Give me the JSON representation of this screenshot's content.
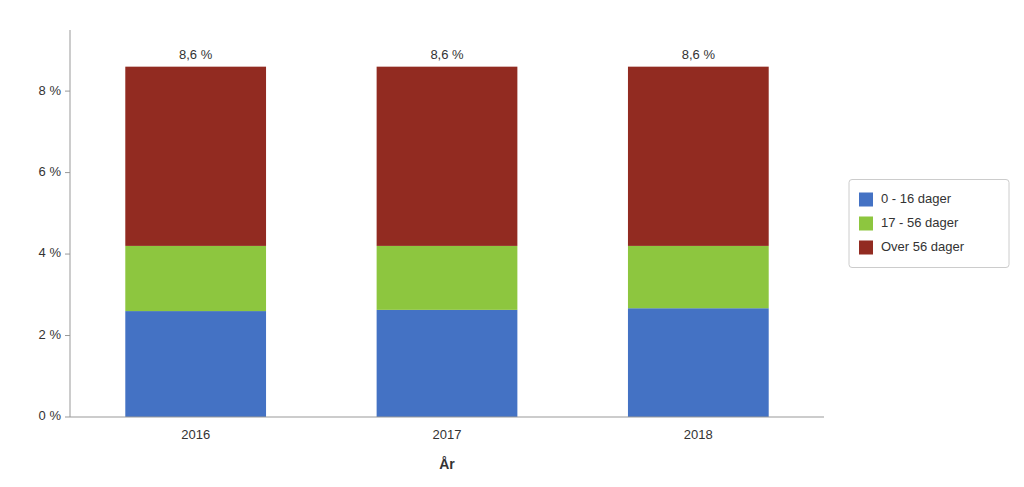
{
  "chart_data": {
    "type": "bar",
    "stacked": true,
    "categories": [
      "2016",
      "2017",
      "2018"
    ],
    "series": [
      {
        "name": "0 - 16 dager",
        "color": "#4472C4",
        "values": [
          2.6,
          2.63,
          2.67
        ]
      },
      {
        "name": "17 - 56 dager",
        "color": "#8DC63F",
        "values": [
          1.6,
          1.57,
          1.53
        ]
      },
      {
        "name": "Over 56 dager",
        "color": "#922B21",
        "values": [
          4.4,
          4.4,
          4.4
        ]
      }
    ],
    "totals": [
      8.6,
      8.6,
      8.6
    ],
    "total_labels": [
      "8,6 %",
      "8,6 %",
      "8,6 %"
    ],
    "xlabel": "År",
    "ylim": [
      0,
      9.5
    ],
    "yticks": [
      {
        "value": 0,
        "label": "0 %"
      },
      {
        "value": 2,
        "label": "2 %"
      },
      {
        "value": 4,
        "label": "4 %"
      },
      {
        "value": 6,
        "label": "6 %"
      },
      {
        "value": 8,
        "label": "8 %"
      }
    ],
    "grid": false,
    "legend": "right"
  }
}
